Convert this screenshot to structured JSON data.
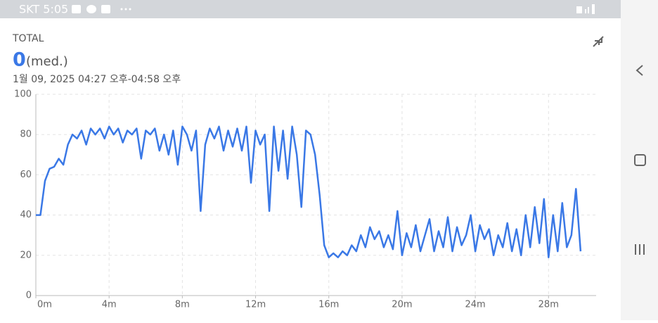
{
  "status_bar": {
    "carrier_time": "SKT 5:05"
  },
  "header": {
    "label": "TOTAL",
    "value": 0,
    "unit": "(med.)",
    "range": "1월 09, 2025 04:27 오후-04:58 오후"
  },
  "chart_data": {
    "type": "line",
    "x": [
      0,
      0.25,
      0.5,
      0.75,
      1,
      1.25,
      1.5,
      1.75,
      2,
      2.25,
      2.5,
      2.75,
      3,
      3.25,
      3.5,
      3.75,
      4,
      4.25,
      4.5,
      4.75,
      5,
      5.25,
      5.5,
      5.75,
      6,
      6.25,
      6.5,
      6.75,
      7,
      7.25,
      7.5,
      7.75,
      8,
      8.25,
      8.5,
      8.75,
      9,
      9.25,
      9.5,
      9.75,
      10,
      10.25,
      10.5,
      10.75,
      11,
      11.25,
      11.5,
      11.75,
      12,
      12.25,
      12.5,
      12.75,
      13,
      13.25,
      13.5,
      13.75,
      14,
      14.25,
      14.5,
      14.75,
      15,
      15.25,
      15.5,
      15.75,
      16,
      16.25,
      16.5,
      16.75,
      17,
      17.25,
      17.5,
      17.75,
      18,
      18.25,
      18.5,
      18.75,
      19,
      19.25,
      19.5,
      19.75,
      20,
      20.25,
      20.5,
      20.75,
      21,
      21.25,
      21.5,
      21.75,
      22,
      22.25,
      22.5,
      22.75,
      23,
      23.25,
      23.5,
      23.75,
      24,
      24.25,
      24.5,
      24.75,
      25,
      25.25,
      25.5,
      25.75,
      26,
      26.25,
      26.5,
      26.75,
      27,
      27.25,
      27.5,
      27.75,
      28,
      28.25,
      28.5,
      28.75,
      29,
      29.25,
      29.5,
      29.75
    ],
    "series": [
      {
        "color": "#3a78e6",
        "values": [
          40,
          40,
          57,
          63,
          64,
          68,
          65,
          75,
          80,
          78,
          82,
          75,
          83,
          80,
          83,
          78,
          84,
          80,
          83,
          76,
          82,
          80,
          83,
          68,
          82,
          80,
          83,
          72,
          80,
          70,
          82,
          65,
          84,
          80,
          72,
          82,
          42,
          75,
          83,
          78,
          84,
          72,
          82,
          74,
          83,
          72,
          84,
          56,
          82,
          75,
          80,
          42,
          84,
          62,
          82,
          58,
          84,
          70,
          44,
          82,
          80,
          70,
          50,
          25,
          19,
          21,
          19,
          22,
          20,
          25,
          22,
          30,
          24,
          34,
          28,
          32,
          24,
          30,
          23,
          42,
          20,
          31,
          24,
          35,
          22,
          30,
          38,
          22,
          32,
          24,
          39,
          22,
          34,
          25,
          30,
          40,
          22,
          35,
          28,
          33,
          20,
          30,
          24,
          36,
          22,
          33,
          20,
          40,
          24,
          44,
          26,
          48,
          19,
          40,
          22,
          46,
          24,
          30,
          53,
          22
        ]
      }
    ],
    "xlim": [
      0,
      30.6
    ],
    "xticks": [
      {
        "value": 0,
        "label": "0m"
      },
      {
        "value": 4,
        "label": "4m"
      },
      {
        "value": 8,
        "label": "8m"
      },
      {
        "value": 12,
        "label": "12m"
      },
      {
        "value": 16,
        "label": "16m"
      },
      {
        "value": 20,
        "label": "20m"
      },
      {
        "value": 24,
        "label": "24m"
      },
      {
        "value": 28,
        "label": "28m"
      }
    ],
    "ylim": [
      0,
      100
    ],
    "yticks": [
      0,
      20,
      40,
      60,
      80,
      100
    ],
    "grid": true
  }
}
